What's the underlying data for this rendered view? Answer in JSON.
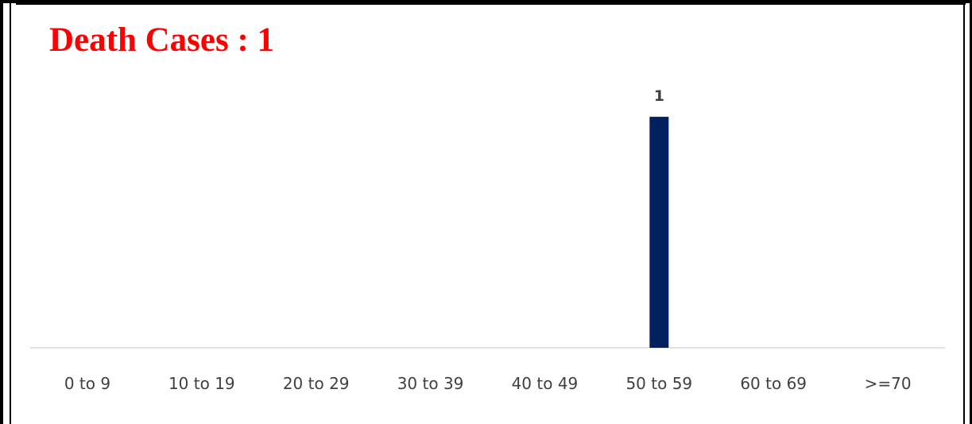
{
  "chart_data": {
    "type": "bar",
    "title": "Death Cases : 1",
    "categories": [
      "0 to 9",
      "10 to 19",
      "20 to 29",
      "30 to 39",
      "40 to 49",
      "50 to 59",
      "60 to 69",
      ">=70"
    ],
    "values": [
      0,
      0,
      0,
      0,
      0,
      1,
      0,
      0
    ],
    "data_labels": [
      "",
      "",
      "",
      "",
      "",
      "1",
      "",
      ""
    ],
    "ylim": [
      0,
      1.1
    ],
    "grid": false,
    "legend": "none",
    "xlabel": "",
    "ylabel": "",
    "colors": {
      "bar": "#002060",
      "title": "#ff0000",
      "axis": "#d9d9d9",
      "text": "#404040"
    }
  }
}
